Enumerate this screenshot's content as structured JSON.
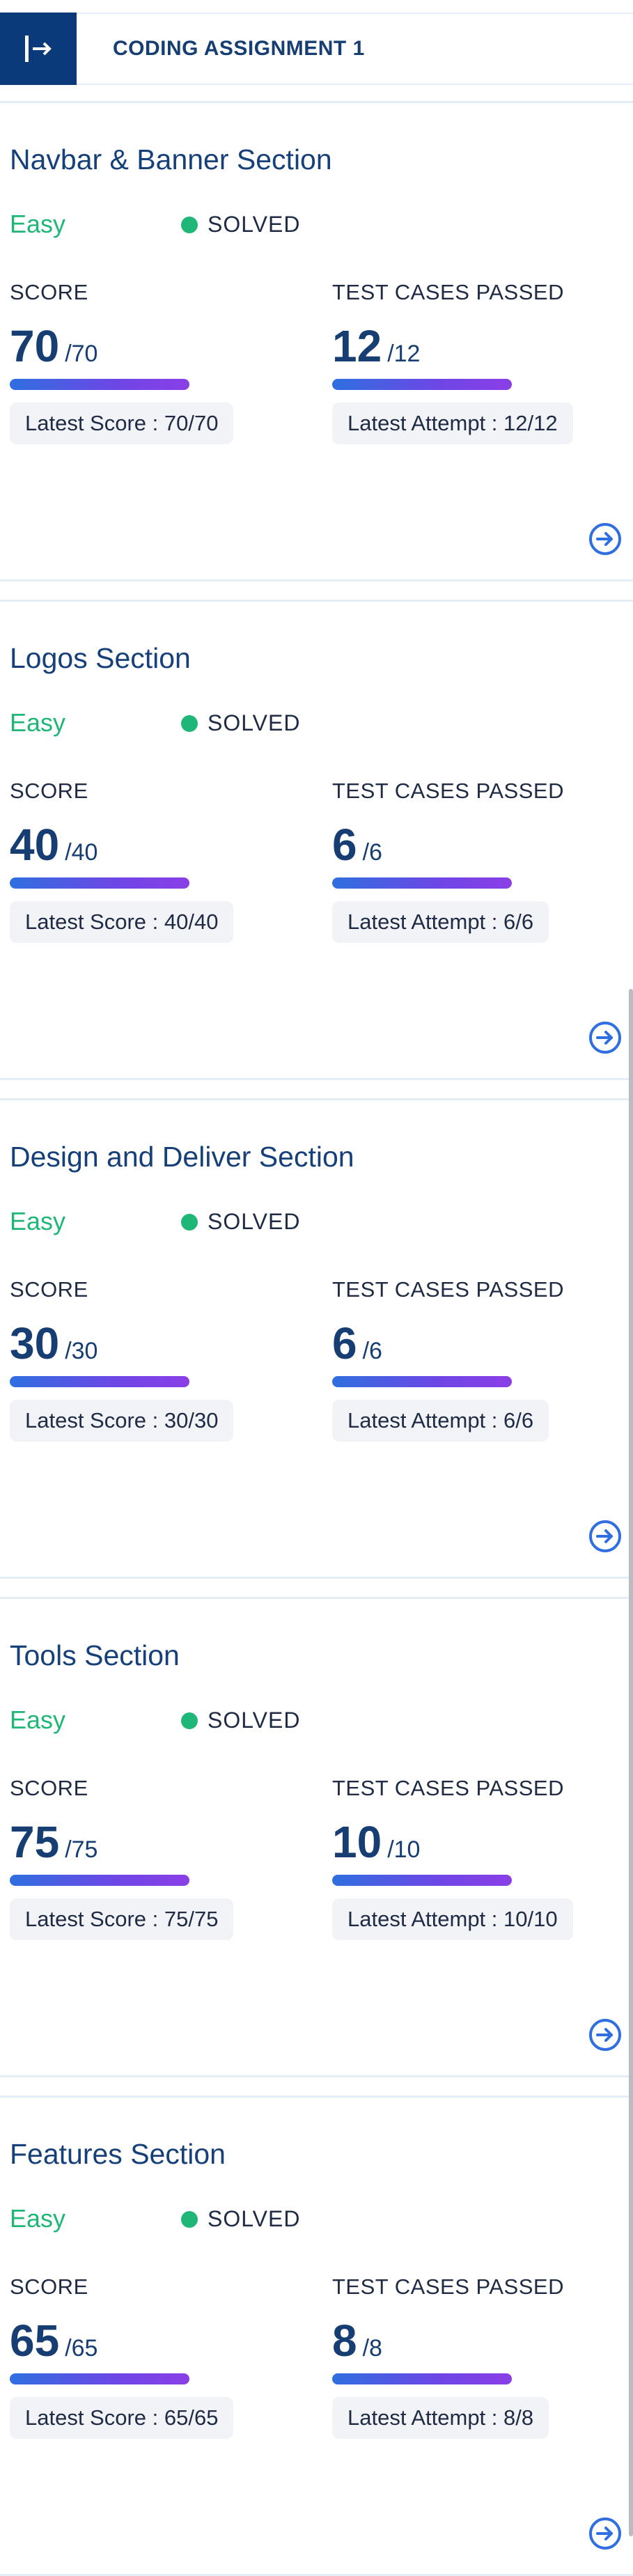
{
  "header": {
    "title": "CODING ASSIGNMENT 1",
    "toggle_icon": "sidebar-expand-icon"
  },
  "labels": {
    "score": "SCORE",
    "tests": "TEST CASES PASSED"
  },
  "cards": [
    {
      "title": "Navbar & Banner Section",
      "difficulty": "Easy",
      "status": "SOLVED",
      "score": "70",
      "score_total": "/70",
      "tests": "12",
      "tests_total": "/12",
      "latest_score": "Latest Score : 70/70",
      "latest_attempt": "Latest Attempt : 12/12",
      "score_progress": 1,
      "tests_progress": 1
    },
    {
      "title": "Logos Section",
      "difficulty": "Easy",
      "status": "SOLVED",
      "score": "40",
      "score_total": "/40",
      "tests": "6",
      "tests_total": "/6",
      "latest_score": "Latest Score : 40/40",
      "latest_attempt": "Latest Attempt : 6/6",
      "score_progress": 1,
      "tests_progress": 1
    },
    {
      "title": "Design and Deliver Section",
      "difficulty": "Easy",
      "status": "SOLVED",
      "score": "30",
      "score_total": "/30",
      "tests": "6",
      "tests_total": "/6",
      "latest_score": "Latest Score : 30/30",
      "latest_attempt": "Latest Attempt : 6/6",
      "score_progress": 1,
      "tests_progress": 1
    },
    {
      "title": "Tools Section",
      "difficulty": "Easy",
      "status": "SOLVED",
      "score": "75",
      "score_total": "/75",
      "tests": "10",
      "tests_total": "/10",
      "latest_score": "Latest Score : 75/75",
      "latest_attempt": "Latest Attempt : 10/10",
      "score_progress": 1,
      "tests_progress": 1
    },
    {
      "title": "Features Section",
      "difficulty": "Easy",
      "status": "SOLVED",
      "score": "65",
      "score_total": "/65",
      "tests": "8",
      "tests_total": "/8",
      "latest_score": "Latest Score : 65/65",
      "latest_attempt": "Latest Attempt : 8/8",
      "score_progress": 1,
      "tests_progress": 1
    }
  ],
  "colors": {
    "brand": "#0b3a7a",
    "title": "#16407a",
    "easy": "#1fb777",
    "solved_dot": "#1fb777",
    "progress_start": "#2f6fe0",
    "progress_end": "#8a3fe6"
  }
}
